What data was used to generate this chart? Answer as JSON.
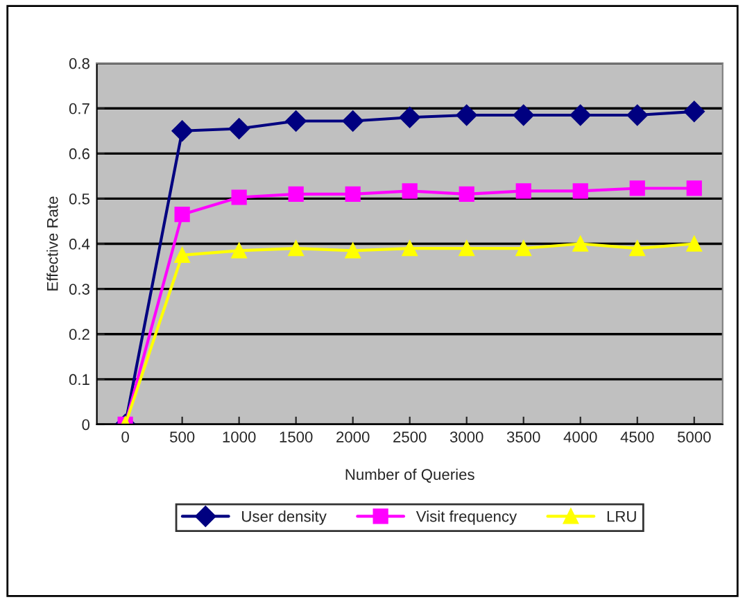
{
  "chart_data": {
    "type": "line",
    "xlabel": "Number of Queries",
    "ylabel": "Effective Rate",
    "categories": [
      "0",
      "500",
      "1000",
      "1500",
      "2000",
      "2500",
      "3000",
      "3500",
      "4000",
      "4500",
      "5000"
    ],
    "series": [
      {
        "name": "User density",
        "color": "#000080",
        "marker": "diamond",
        "values": [
          0,
          0.65,
          0.655,
          0.672,
          0.672,
          0.68,
          0.685,
          0.685,
          0.685,
          0.685,
          0.693
        ]
      },
      {
        "name": "Visit frequency",
        "color": "#ff00ff",
        "marker": "square",
        "values": [
          0,
          0.465,
          0.503,
          0.51,
          0.51,
          0.517,
          0.51,
          0.517,
          0.517,
          0.523,
          0.523
        ]
      },
      {
        "name": "LRU",
        "color": "#ffff00",
        "marker": "triangle",
        "values": [
          0,
          0.375,
          0.385,
          0.39,
          0.385,
          0.39,
          0.39,
          0.39,
          0.4,
          0.39,
          0.4
        ]
      }
    ],
    "ylim": [
      0,
      0.8
    ],
    "yticks": [
      0,
      0.1,
      0.2,
      0.3,
      0.4,
      0.5,
      0.6,
      0.7,
      0.8
    ],
    "grid": "y",
    "legend": "bottom",
    "line_style": "solid"
  }
}
